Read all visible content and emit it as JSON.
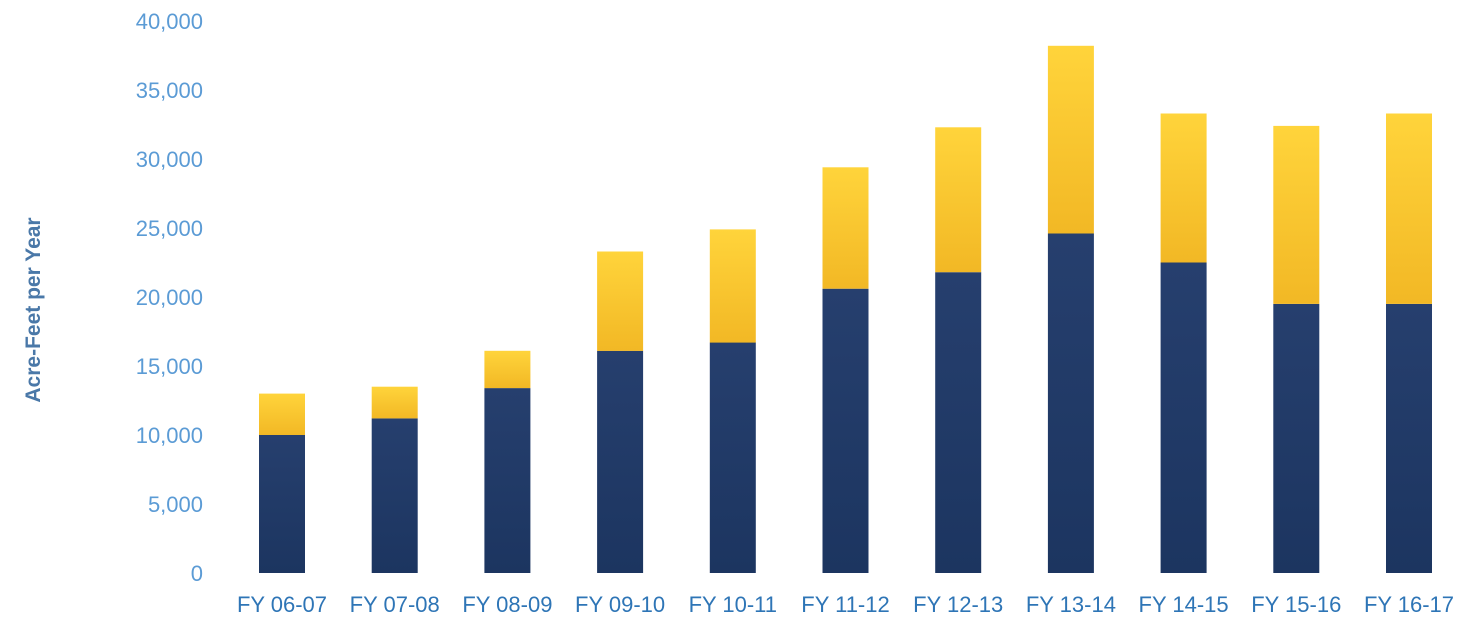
{
  "chart_data": {
    "type": "bar",
    "stacked": true,
    "title": "",
    "xlabel": "",
    "ylabel": "Acre-Feet per Year",
    "ylim": [
      0,
      40000
    ],
    "yticks": [
      "0",
      "5,000",
      "10,000",
      "15,000",
      "20,000",
      "25,000",
      "30,000",
      "35,000",
      "40,000"
    ],
    "ytick_values": [
      0,
      5000,
      10000,
      15000,
      20000,
      25000,
      30000,
      35000,
      40000
    ],
    "categories": [
      "FY 06-07",
      "FY 07-08",
      "FY 08-09",
      "FY 09-10",
      "FY 10-11",
      "FY 11-12",
      "FY 12-13",
      "FY 13-14",
      "FY 14-15",
      "FY 15-16",
      "FY 16-17"
    ],
    "series": [
      {
        "color": "#1f3b6b",
        "values": [
          10000,
          11200,
          13400,
          16100,
          16700,
          20600,
          21800,
          24600,
          22500,
          19500,
          19500
        ]
      },
      {
        "color": "#f6c93a",
        "values": [
          3000,
          2300,
          2700,
          7200,
          8200,
          8800,
          10500,
          13600,
          10800,
          12900,
          13800
        ]
      }
    ],
    "grid": false,
    "legend": "none"
  }
}
